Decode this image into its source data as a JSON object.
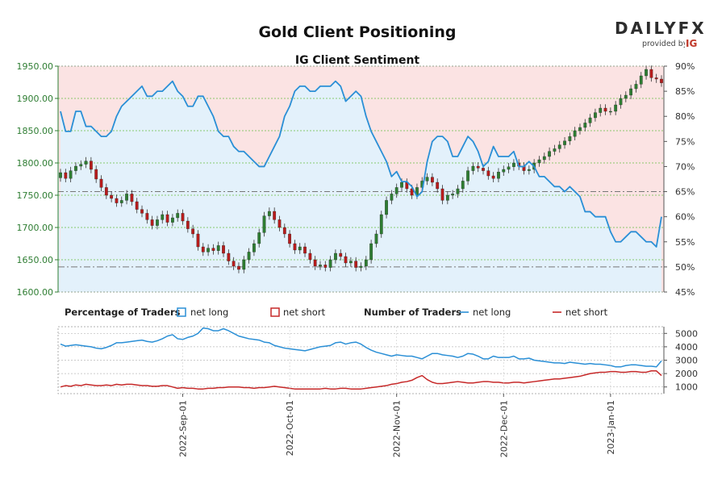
{
  "title": "Gold Client Positioning",
  "subtitle": "IG Client Sentiment",
  "brand": {
    "logo_text": "DAILYFX",
    "provided_by": "provided by",
    "provider_badge": "IG",
    "colors": {
      "text": "#2d2d2d",
      "badge": "#c0392b"
    }
  },
  "legend": {
    "percentage_title": "Percentage of Traders",
    "number_title": "Number of Traders",
    "net_long": "net long",
    "net_short": "net short"
  },
  "colors": {
    "up_candle": "#2e7d32",
    "down_candle": "#b71c1c",
    "sentiment_line": "#2a8fd6",
    "long_fill": "#e3f1fb",
    "short_fill": "#fbe3e3",
    "price_axis": "#2e7d32",
    "net_short_line": "#c62828",
    "grid": "#6abf45"
  },
  "chart_data": [
    {
      "type": "candlestick",
      "title": "Gold Client Positioning",
      "subtitle": "IG Client Sentiment",
      "y_left_ticks": [
        "1950.00",
        "1900.00",
        "1850.00",
        "1800.00",
        "1750.00",
        "1700.00",
        "1650.00",
        "1600.00"
      ],
      "y_left_range": [
        1600,
        1950
      ],
      "y_right_ticks": [
        "90%",
        "85%",
        "80%",
        "75%",
        "70%",
        "65%",
        "60%",
        "55%",
        "50%",
        "45%"
      ],
      "y_right_range": [
        45,
        90
      ],
      "reference_lines": [
        {
          "axis": "right",
          "value": 65
        },
        {
          "axis": "right",
          "value": 50
        }
      ],
      "x_ticks": [
        "2022-Sep-01",
        "2022-Oct-01",
        "2022-Nov-01",
        "2022-Dec-01",
        "2023-Jan-01"
      ],
      "price_close": [
        1785,
        1776,
        1788,
        1795,
        1798,
        1803,
        1790,
        1775,
        1762,
        1750,
        1745,
        1738,
        1742,
        1752,
        1740,
        1728,
        1722,
        1712,
        1703,
        1712,
        1720,
        1708,
        1715,
        1722,
        1710,
        1698,
        1690,
        1670,
        1662,
        1668,
        1664,
        1672,
        1660,
        1648,
        1640,
        1635,
        1650,
        1662,
        1675,
        1692,
        1718,
        1725,
        1712,
        1700,
        1690,
        1675,
        1665,
        1670,
        1660,
        1650,
        1640,
        1642,
        1638,
        1650,
        1660,
        1655,
        1645,
        1648,
        1638,
        1640,
        1650,
        1675,
        1690,
        1720,
        1742,
        1752,
        1762,
        1770,
        1760,
        1750,
        1762,
        1772,
        1778,
        1770,
        1760,
        1742,
        1750,
        1752,
        1760,
        1772,
        1788,
        1795,
        1792,
        1788,
        1780,
        1776,
        1786,
        1790,
        1794,
        1800,
        1795,
        1788,
        1790,
        1800,
        1805,
        1810,
        1818,
        1822,
        1828,
        1834,
        1841,
        1850,
        1855,
        1862,
        1870,
        1878,
        1885,
        1880,
        1880,
        1890,
        1900,
        1905,
        1915,
        1922,
        1935,
        1945,
        1932,
        1930,
        1924
      ],
      "sentiment_net_long_pct": [
        81,
        77,
        77,
        81,
        81,
        78,
        78,
        77,
        76,
        76,
        77,
        80,
        82,
        83,
        84,
        85,
        86,
        84,
        84,
        85,
        85,
        86,
        87,
        85,
        84,
        82,
        82,
        84,
        84,
        82,
        80,
        77,
        76,
        76,
        74,
        73,
        73,
        72,
        71,
        70,
        70,
        72,
        74,
        76,
        80,
        82,
        85,
        86,
        86,
        85,
        85,
        86,
        86,
        86,
        87,
        86,
        83,
        84,
        85,
        84,
        80,
        77,
        75,
        73,
        71,
        68,
        69,
        67,
        67,
        66,
        64,
        65,
        71,
        75,
        76,
        76,
        75,
        72,
        72,
        74,
        76,
        75,
        73,
        70,
        71,
        74,
        72,
        72,
        72,
        73,
        70,
        70,
        71,
        70,
        68,
        68,
        67,
        66,
        66,
        65,
        66,
        65,
        64,
        61,
        61,
        60,
        60,
        60,
        57,
        55,
        55,
        56,
        57,
        57,
        56,
        55,
        55,
        54,
        60
      ]
    },
    {
      "type": "line",
      "title": "Number of Traders",
      "y_right_ticks": [
        "5000",
        "4000",
        "3000",
        "2000",
        "1000"
      ],
      "y_right_range": [
        500,
        5500
      ],
      "x_ticks": [
        "2022-Sep-01",
        "2022-Oct-01",
        "2022-Nov-01",
        "2022-Dec-01",
        "2023-Jan-01"
      ],
      "series": [
        {
          "name": "net long",
          "values": [
            4200,
            4050,
            4100,
            4150,
            4100,
            4050,
            4000,
            3900,
            3850,
            3950,
            4100,
            4300,
            4300,
            4350,
            4400,
            4450,
            4500,
            4400,
            4350,
            4450,
            4600,
            4800,
            4900,
            4600,
            4550,
            4700,
            4800,
            5000,
            5400,
            5350,
            5200,
            5200,
            5350,
            5200,
            5000,
            4800,
            4700,
            4600,
            4550,
            4500,
            4350,
            4300,
            4100,
            4000,
            3900,
            3850,
            3800,
            3750,
            3700,
            3800,
            3900,
            4000,
            4050,
            4100,
            4300,
            4350,
            4200,
            4300,
            4350,
            4200,
            3950,
            3750,
            3600,
            3500,
            3400,
            3300,
            3400,
            3350,
            3300,
            3300,
            3200,
            3100,
            3300,
            3500,
            3500,
            3400,
            3350,
            3300,
            3200,
            3300,
            3500,
            3450,
            3300,
            3100,
            3100,
            3300,
            3200,
            3200,
            3200,
            3300,
            3100,
            3100,
            3150,
            3000,
            2950,
            2900,
            2850,
            2800,
            2800,
            2750,
            2850,
            2800,
            2750,
            2700,
            2750,
            2700,
            2700,
            2650,
            2600,
            2500,
            2500,
            2600,
            2650,
            2650,
            2600,
            2550,
            2550,
            2500,
            2950
          ]
        },
        {
          "name": "net short",
          "values": [
            1000,
            1100,
            1050,
            1150,
            1100,
            1200,
            1150,
            1100,
            1100,
            1150,
            1100,
            1200,
            1150,
            1200,
            1200,
            1150,
            1100,
            1100,
            1050,
            1050,
            1100,
            1100,
            1000,
            900,
            950,
            900,
            900,
            850,
            850,
            900,
            900,
            950,
            950,
            1000,
            1000,
            1000,
            950,
            950,
            900,
            950,
            950,
            1000,
            1050,
            1000,
            950,
            900,
            850,
            850,
            850,
            850,
            850,
            850,
            900,
            850,
            850,
            900,
            900,
            850,
            850,
            850,
            900,
            950,
            1000,
            1050,
            1100,
            1200,
            1250,
            1350,
            1400,
            1500,
            1700,
            1850,
            1550,
            1350,
            1250,
            1250,
            1300,
            1350,
            1400,
            1350,
            1300,
            1300,
            1350,
            1400,
            1400,
            1350,
            1350,
            1300,
            1300,
            1350,
            1350,
            1300,
            1350,
            1400,
            1450,
            1500,
            1550,
            1600,
            1600,
            1650,
            1700,
            1750,
            1800,
            1900,
            2000,
            2050,
            2100,
            2100,
            2150,
            2150,
            2100,
            2100,
            2150,
            2150,
            2100,
            2100,
            2200,
            2200,
            1850
          ]
        }
      ]
    }
  ]
}
